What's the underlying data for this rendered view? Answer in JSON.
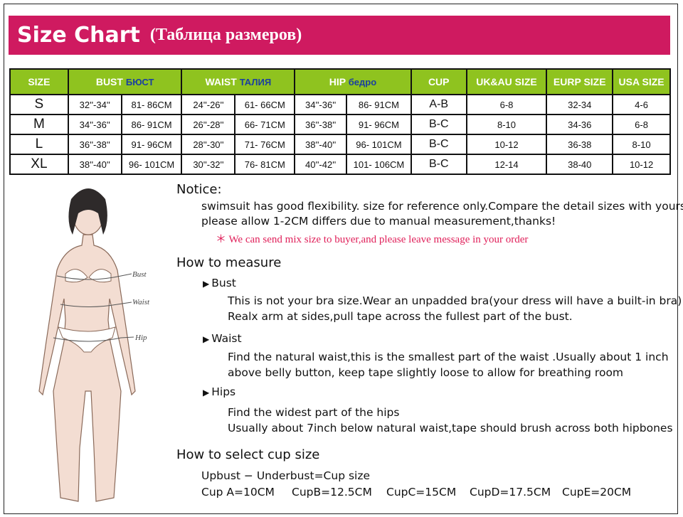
{
  "header": {
    "title": "Size Chart",
    "subtitle": "(Таблица размеров)"
  },
  "table": {
    "headers": {
      "size": "SIZE",
      "bust": "BUST",
      "bust_ru": "БЮСТ",
      "waist": "WAIST",
      "waist_ru": "ТАЛИЯ",
      "hip": "HIP",
      "hip_ru": "бедро",
      "cup": "CUP",
      "uk": "UK&AU SIZE",
      "eurp": "EURP SIZE",
      "usa": "USA SIZE"
    },
    "rows": [
      {
        "size": "S",
        "bust_in": "32''-34''",
        "bust_cm": "81- 86CM",
        "waist_in": "24''-26''",
        "waist_cm": "61- 66CM",
        "hip_in": "34''-36''",
        "hip_cm": "86- 91CM",
        "cup": "A-B",
        "uk": "6-8",
        "eurp": "32-34",
        "usa": "4-6"
      },
      {
        "size": "M",
        "bust_in": "34''-36''",
        "bust_cm": "86- 91CM",
        "waist_in": "26''-28''",
        "waist_cm": "66- 71CM",
        "hip_in": "36''-38''",
        "hip_cm": "91- 96CM",
        "cup": "B-C",
        "uk": "8-10",
        "eurp": "34-36",
        "usa": "6-8"
      },
      {
        "size": "L",
        "bust_in": "36''-38''",
        "bust_cm": "91- 96CM",
        "waist_in": "28''-30''",
        "waist_cm": "71- 76CM",
        "hip_in": "38''-40''",
        "hip_cm": "96- 101CM",
        "cup": "B-C",
        "uk": "10-12",
        "eurp": "36-38",
        "usa": "8-10"
      },
      {
        "size": "XL",
        "bust_in": "38''-40''",
        "bust_cm": "96- 101CM",
        "waist_in": "30''-32''",
        "waist_cm": "76- 81CM",
        "hip_in": "40''-42''",
        "hip_cm": "101- 106CM",
        "cup": "B-C",
        "uk": "12-14",
        "eurp": "38-40",
        "usa": "10-12"
      }
    ]
  },
  "figure": {
    "bust": "Bust",
    "waist": "Waist",
    "hip": "Hip"
  },
  "notice": {
    "title": "Notice:",
    "line1": "swimsuit has good flexibility. size for reference only.Compare the detail sizes with yours,",
    "line2": "please allow 1-2CM differs due to manual measurement,thanks!",
    "note": "＊ We can send mix size to buyer,and please leave message in your order"
  },
  "measure": {
    "title": "How to measure",
    "bust": {
      "label": "Bust",
      "l1": "This is not your bra size.Wear an unpadded bra(your dress will have a built-in bra)",
      "l2": "Realx arm at sides,pull tape across the fullest part of the bust."
    },
    "waist": {
      "label": "Waist",
      "l1": "Find the natural waist,this is the smallest part of the waist .Usually about 1 inch",
      "l2": "above belly button, keep tape slightly loose to allow for breathing room"
    },
    "hips": {
      "label": "Hips",
      "l1": "Find the widest part of the hips",
      "l2": "Usually about 7inch below natural waist,tape should brush across both hipbones"
    }
  },
  "cup": {
    "title": "How to select cup size",
    "formula": "Upbust  − Underbust=Cup size",
    "items": [
      "Cup A=10CM",
      "CupB=12.5CM",
      "CupC=15CM",
      "CupD=17.5CM",
      "CupE=20CM"
    ]
  },
  "colors": {
    "banner": "#cf1a60",
    "table_header": "#8fc31f",
    "russian_label": "#1b3fa0",
    "note": "#e0205a"
  }
}
